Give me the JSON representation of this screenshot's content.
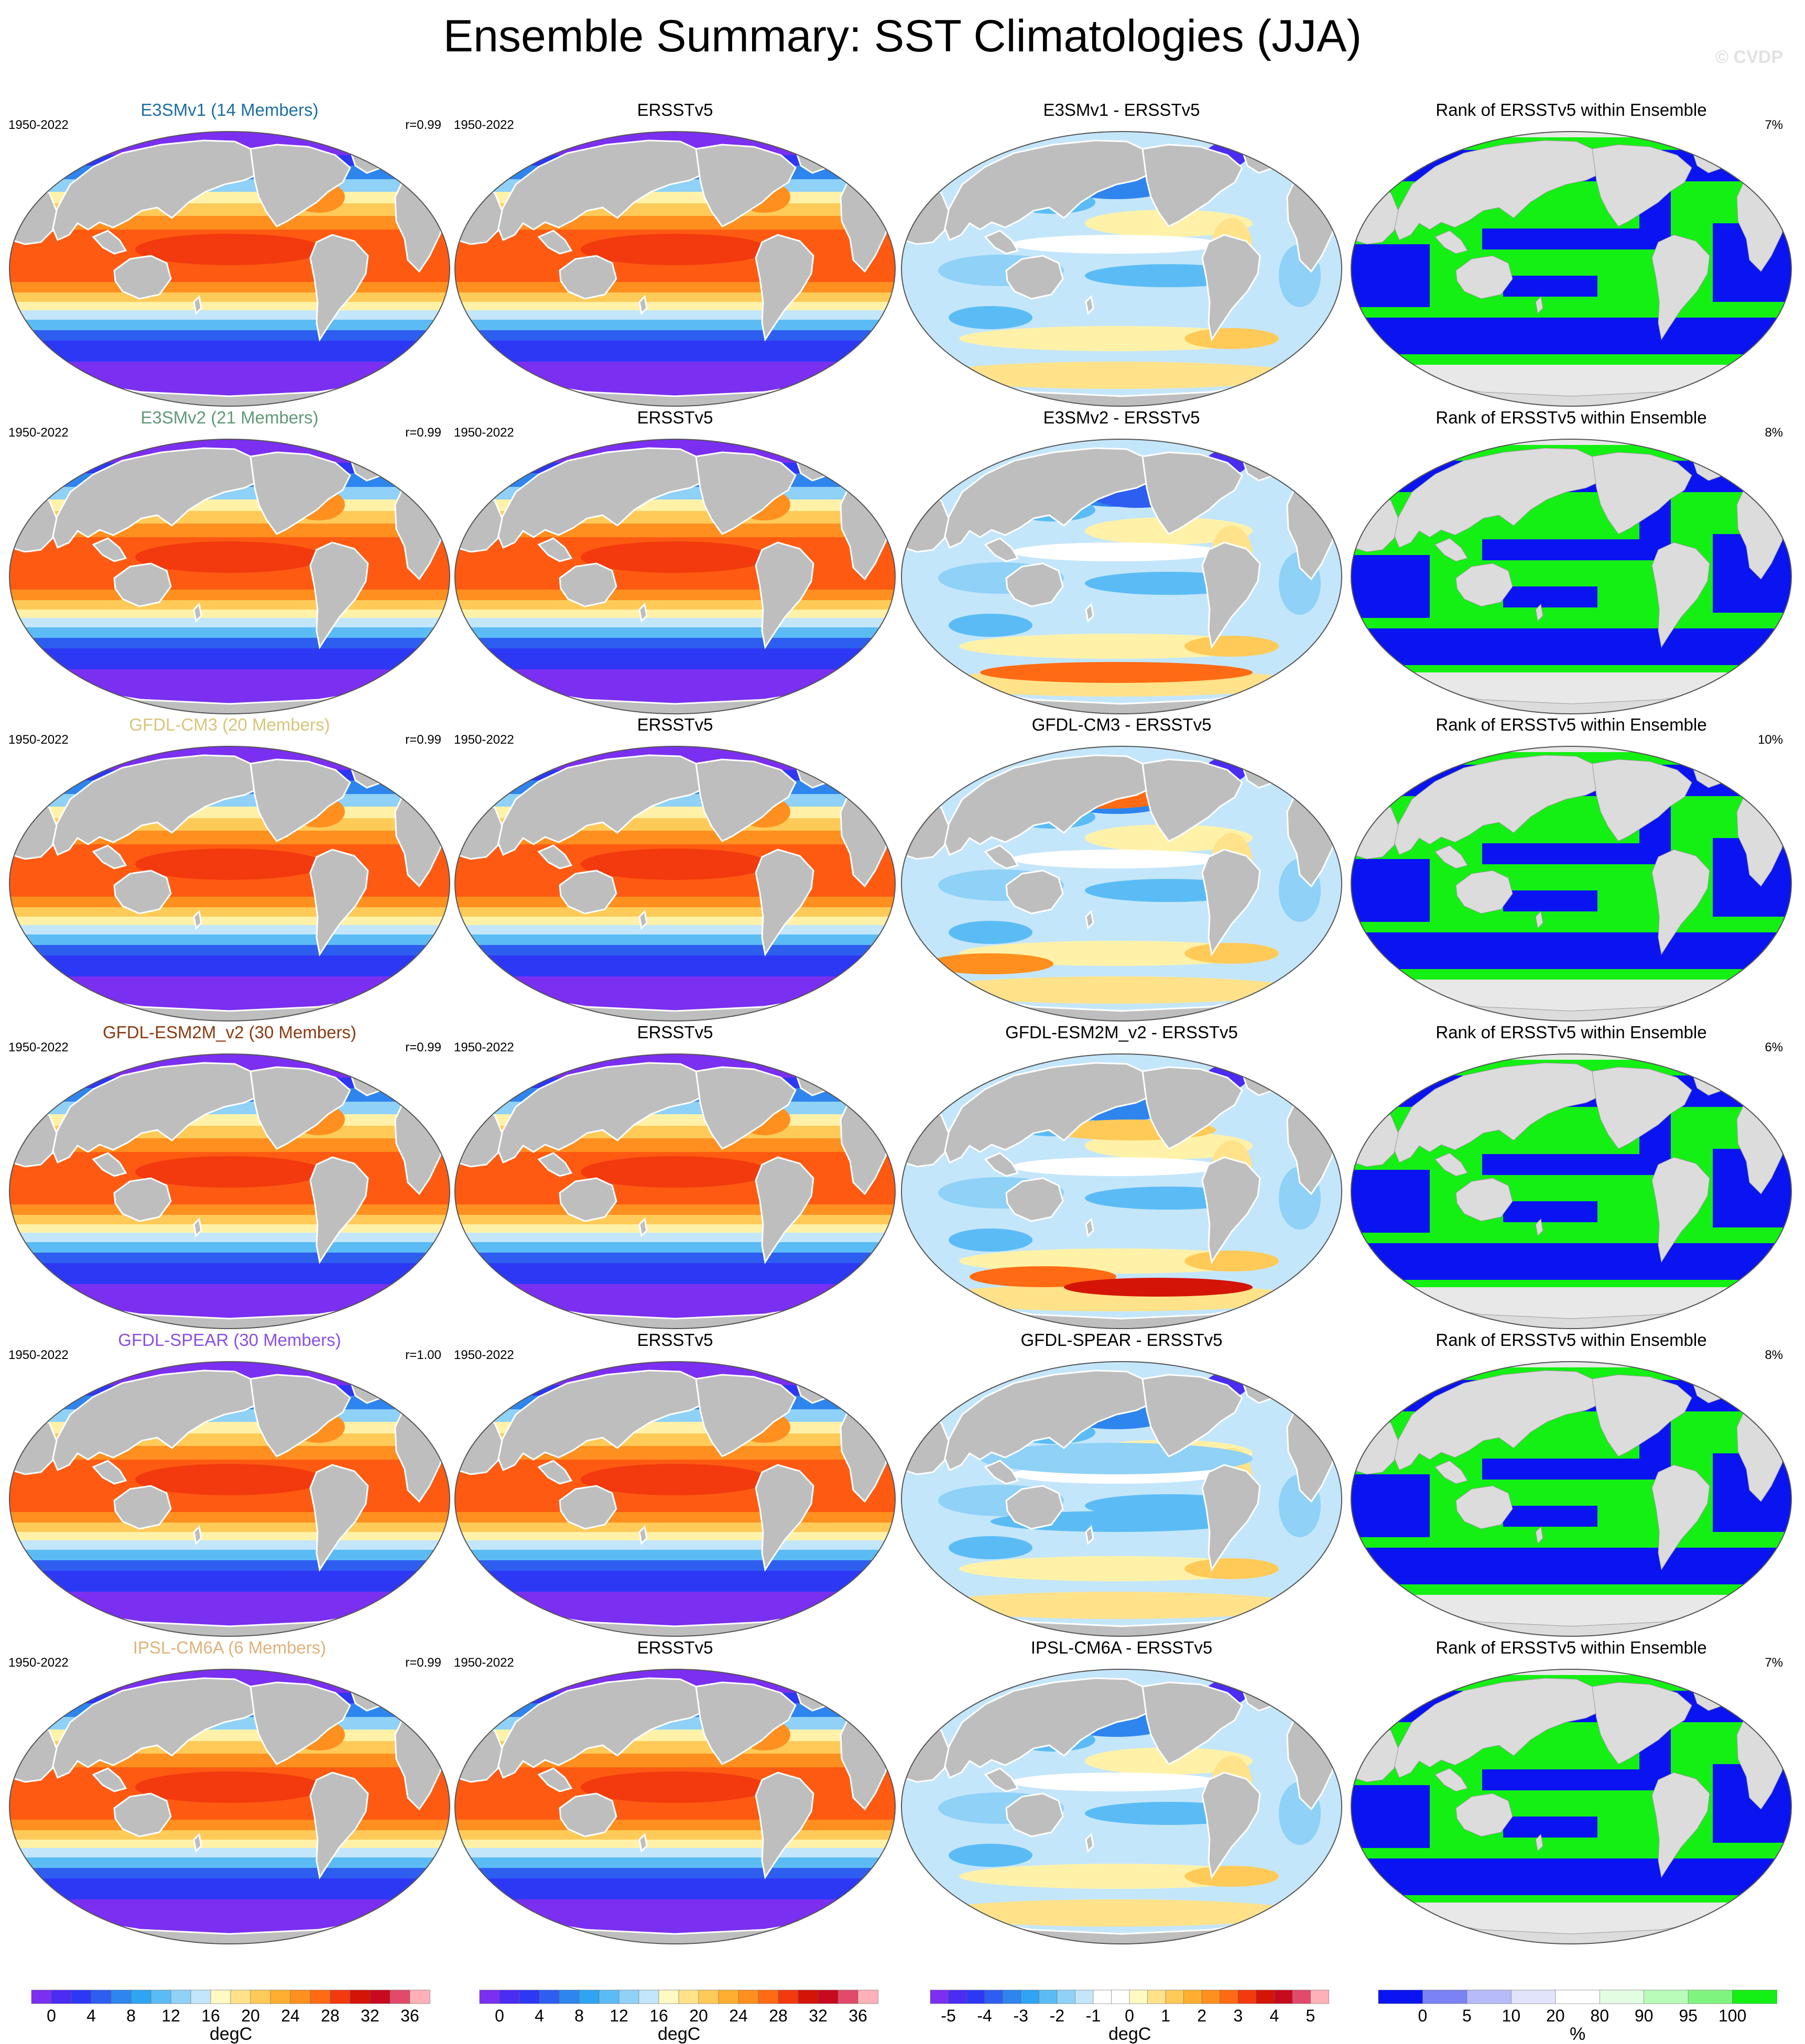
{
  "title": "Ensemble Summary: SST Climatologies (JJA)",
  "watermark": "© CVDP",
  "rows": [
    {
      "model_title": "E3SMv1 (14 Members)",
      "title_color": "#1d6ea3",
      "period": "1950-2022",
      "r_text": "r=0.99",
      "obs_title": "ERSSTv5",
      "obs_period": "1950-2022",
      "diff_title": "E3SMv1 - ERSSTv5",
      "rank_title": "Rank of ERSSTv5 within Ensemble",
      "rank_pct": "7%"
    },
    {
      "model_title": "E3SMv2 (21 Members)",
      "title_color": "#5f9a76",
      "period": "1950-2022",
      "r_text": "r=0.99",
      "obs_title": "ERSSTv5",
      "obs_period": "1950-2022",
      "diff_title": "E3SMv2 - ERSSTv5",
      "rank_title": "Rank of ERSSTv5 within Ensemble",
      "rank_pct": "8%"
    },
    {
      "model_title": "GFDL-CM3 (20 Members)",
      "title_color": "#d8c57c",
      "period": "1950-2022",
      "r_text": "r=0.99",
      "obs_title": "ERSSTv5",
      "obs_period": "1950-2022",
      "diff_title": "GFDL-CM3 - ERSSTv5",
      "rank_title": "Rank of ERSSTv5 within Ensemble",
      "rank_pct": "10%"
    },
    {
      "model_title": "GFDL-ESM2M_v2 (30 Members)",
      "title_color": "#8b3a10",
      "period": "1950-2022",
      "r_text": "r=0.99",
      "obs_title": "ERSSTv5",
      "obs_period": "1950-2022",
      "diff_title": "GFDL-ESM2M_v2 - ERSSTv5",
      "rank_title": "Rank of ERSSTv5 within Ensemble",
      "rank_pct": "6%"
    },
    {
      "model_title": "GFDL-SPEAR (30 Members)",
      "title_color": "#8a50e8",
      "period": "1950-2022",
      "r_text": "r=1.00",
      "obs_title": "ERSSTv5",
      "obs_period": "1950-2022",
      "diff_title": "GFDL-SPEAR - ERSSTv5",
      "rank_title": "Rank of ERSSTv5 within Ensemble",
      "rank_pct": "8%"
    },
    {
      "model_title": "IPSL-CM6A (6 Members)",
      "title_color": "#e0b27c",
      "period": "1950-2022",
      "r_text": "r=0.99",
      "obs_title": "ERSSTv5",
      "obs_period": "1950-2022",
      "diff_title": "IPSL-CM6A - ERSSTv5",
      "rank_title": "Rank of ERSSTv5 within Ensemble",
      "rank_pct": "7%"
    }
  ],
  "colorbars": [
    {
      "label": "degC",
      "ticks": [
        "0",
        "4",
        "8",
        "12",
        "16",
        "20",
        "24",
        "28",
        "32",
        "36"
      ],
      "colors": [
        "#7b2ff0",
        "#4a2cf2",
        "#2d38f5",
        "#2e5ef0",
        "#2f85ee",
        "#2ea4f2",
        "#5bbcf5",
        "#8fd1f7",
        "#c4e6fb",
        "#fff9c2",
        "#ffe28a",
        "#ffca58",
        "#ffae2f",
        "#ff8f1f",
        "#ff6b14",
        "#f23a0e",
        "#d41406",
        "#c80a1e",
        "#e14a6a",
        "#ffb0b8"
      ]
    },
    {
      "label": "degC",
      "ticks": [
        "0",
        "4",
        "8",
        "12",
        "16",
        "20",
        "24",
        "28",
        "32",
        "36"
      ],
      "colors": [
        "#7b2ff0",
        "#4a2cf2",
        "#2d38f5",
        "#2e5ef0",
        "#2f85ee",
        "#2ea4f2",
        "#5bbcf5",
        "#8fd1f7",
        "#c4e6fb",
        "#fff9c2",
        "#ffe28a",
        "#ffca58",
        "#ffae2f",
        "#ff8f1f",
        "#ff6b14",
        "#f23a0e",
        "#d41406",
        "#c80a1e",
        "#e14a6a",
        "#ffb0b8"
      ]
    },
    {
      "label": "degC",
      "ticks": [
        "-5",
        "-4",
        "-3",
        "-2",
        "-1",
        "0",
        "1",
        "2",
        "3",
        "4",
        "5"
      ],
      "colors": [
        "#7b2ff0",
        "#4a2cf2",
        "#2d38f5",
        "#2e5ef0",
        "#2f85ee",
        "#2ea4f2",
        "#5bbcf5",
        "#8fd1f7",
        "#c4e6fb",
        "#ffffff",
        "#ffffff",
        "#fff9c2",
        "#ffe28a",
        "#ffca58",
        "#ffae2f",
        "#ff8f1f",
        "#ff6b14",
        "#f23a0e",
        "#d41406",
        "#c80a1e",
        "#e14a6a",
        "#ffb0b8"
      ]
    },
    {
      "label": "%",
      "ticks": [
        "0",
        "5",
        "10",
        "20",
        "80",
        "90",
        "95",
        "100"
      ],
      "colors": [
        "#0a14f0",
        "#7a82f4",
        "#b7bbf8",
        "#e2e4fc",
        "#ffffff",
        "#e3fde3",
        "#b9fbb9",
        "#7ff57f",
        "#14f014"
      ]
    }
  ],
  "chart_data": [
    {
      "type": "heatmap",
      "title": "Ensemble Summary: SST Climatologies (JJA)",
      "panels": [
        "model SST climatology (degC)",
        "ERSSTv5 SST climatology (degC)",
        "model - ERSSTv5 difference (degC)",
        "Rank of ERSSTv5 within Ensemble (%)"
      ],
      "models": [
        "E3SMv1",
        "E3SMv2",
        "GFDL-CM3",
        "GFDL-ESM2M_v2",
        "GFDL-SPEAR",
        "IPSL-CM6A"
      ],
      "members": [
        14,
        21,
        20,
        30,
        30,
        6
      ],
      "pattern_correlation": [
        0.99,
        0.99,
        0.99,
        0.99,
        1.0,
        0.99
      ],
      "rank_percent": [
        7,
        8,
        10,
        6,
        8,
        7
      ],
      "period": "1950-2022",
      "sst_range": [
        0,
        36
      ],
      "diff_range": [
        -5,
        5
      ],
      "rank_range": [
        0,
        100
      ]
    }
  ]
}
